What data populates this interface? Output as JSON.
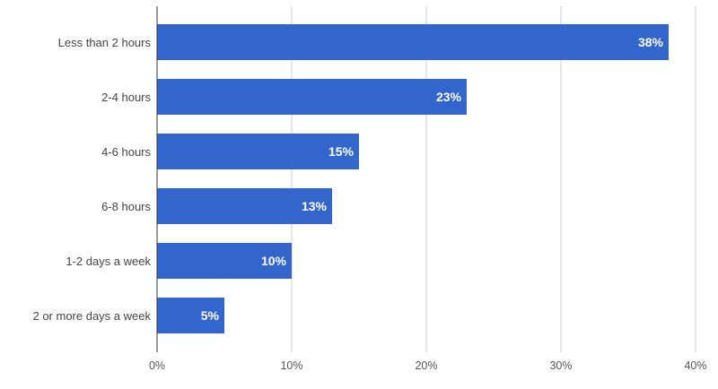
{
  "chart_data": {
    "type": "bar",
    "orientation": "horizontal",
    "categories": [
      "Less than 2 hours",
      "2-4 hours",
      "4-6 hours",
      "6-8 hours",
      "1-2 days a week",
      "2 or more days a week"
    ],
    "values": [
      38,
      23,
      15,
      13,
      10,
      5
    ],
    "data_labels": [
      "38%",
      "23%",
      "15%",
      "13%",
      "10%",
      "5%"
    ],
    "x_ticks": [
      "0%",
      "10%",
      "20%",
      "30%",
      "40%"
    ],
    "xlim": [
      0,
      40
    ],
    "grid": true,
    "bar_color": "#3366cc",
    "title": "",
    "xlabel": "",
    "ylabel": ""
  }
}
